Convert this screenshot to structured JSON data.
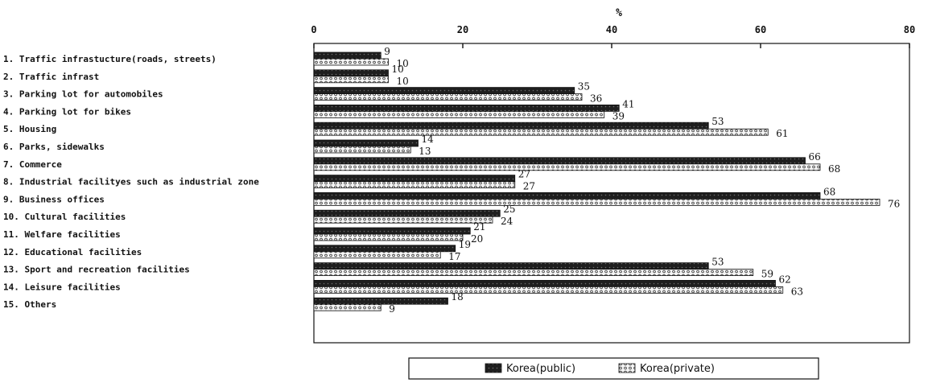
{
  "chart_data": {
    "type": "bar",
    "orientation": "horizontal",
    "unit_label": "%",
    "xlim": [
      0,
      80
    ],
    "x_ticks": [
      0,
      20,
      40,
      60,
      80
    ],
    "grid": false,
    "legend_position": "bottom-center",
    "categories": [
      "1. Traffic infrastucture(roads, streets)",
      "2. Traffic infrast",
      "3. Parking lot for automobiles",
      "4. Parking lot for bikes",
      "5. Housing",
      "6. Parks, sidewalks",
      "7. Commerce",
      "8. Industrial facilityes such as industrial zone",
      "9. Business offices",
      "10. Cultural facilities",
      "11. Welfare facilities",
      "12. Educational facilities",
      "13. Sport and recreation facilities",
      "14. Leisure facilities",
      "15. Others"
    ],
    "series": [
      {
        "name": "Korea(public)",
        "color": "#2a2a2a",
        "values": [
          9,
          10,
          35,
          41,
          53,
          14,
          66,
          27,
          68,
          25,
          21,
          19,
          53,
          62,
          18
        ]
      },
      {
        "name": "Korea(private)",
        "color": "#f2f2f2",
        "values": [
          10,
          10,
          36,
          39,
          61,
          13,
          68,
          27,
          76,
          24,
          20,
          17,
          59,
          63,
          9
        ]
      }
    ]
  }
}
